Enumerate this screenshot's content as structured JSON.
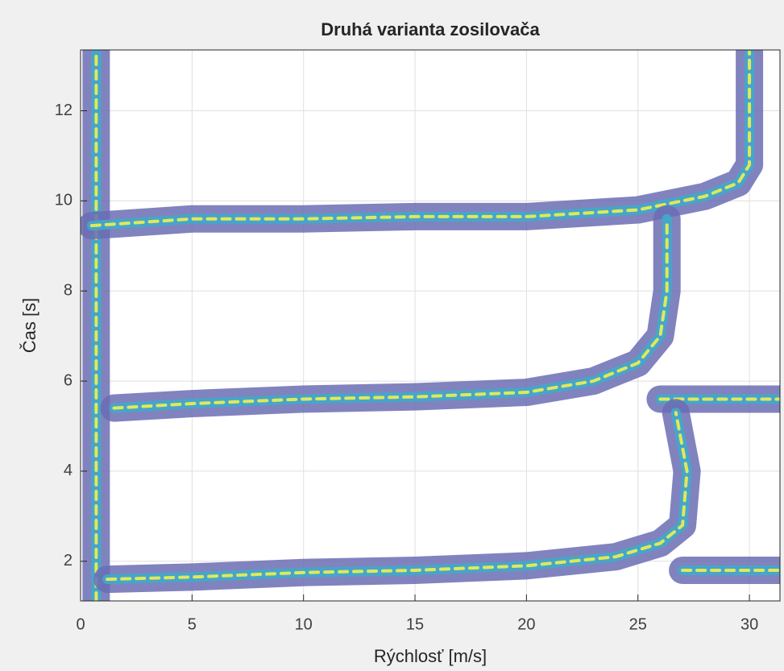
{
  "chart_data": {
    "type": "line",
    "title": "Druhá varianta zosilovača",
    "x_label": "Rýchlosť [m/s]",
    "y_label": "Čas [s]",
    "xlim": [
      0,
      31.37
    ],
    "ylim": [
      1.12,
      13.35
    ],
    "xticks": [
      0,
      5,
      10,
      15,
      20,
      25,
      30
    ],
    "yticks": [
      2,
      4,
      6,
      8,
      10,
      12
    ],
    "grid": true,
    "colormap": [
      "#6b6db4",
      "#3faacb",
      "#f3ee4e"
    ],
    "series": [
      {
        "x": [
          0.7,
          0.7
        ],
        "y": [
          1.12,
          13.35
        ]
      },
      {
        "x": [
          0.5,
          5,
          10,
          15,
          20,
          25,
          28,
          29.5,
          30,
          30
        ],
        "y": [
          9.45,
          9.6,
          9.6,
          9.65,
          9.65,
          9.8,
          10.1,
          10.4,
          10.8,
          13.3
        ]
      },
      {
        "x": [
          1.5,
          5,
          10,
          15,
          20,
          23,
          25,
          26,
          26.3,
          26.3
        ],
        "y": [
          5.4,
          5.5,
          5.6,
          5.65,
          5.75,
          6.0,
          6.4,
          7.0,
          8.0,
          9.6
        ]
      },
      {
        "x": [
          26,
          28,
          31.37
        ],
        "y": [
          5.6,
          5.6,
          5.6
        ]
      },
      {
        "x": [
          1.2,
          5,
          10,
          15,
          20,
          24,
          26,
          27,
          27.2,
          26.7
        ],
        "y": [
          1.6,
          1.65,
          1.75,
          1.8,
          1.9,
          2.1,
          2.4,
          2.8,
          4.0,
          5.3
        ]
      },
      {
        "x": [
          27,
          29,
          31.37
        ],
        "y": [
          1.8,
          1.8,
          1.8
        ]
      }
    ]
  }
}
